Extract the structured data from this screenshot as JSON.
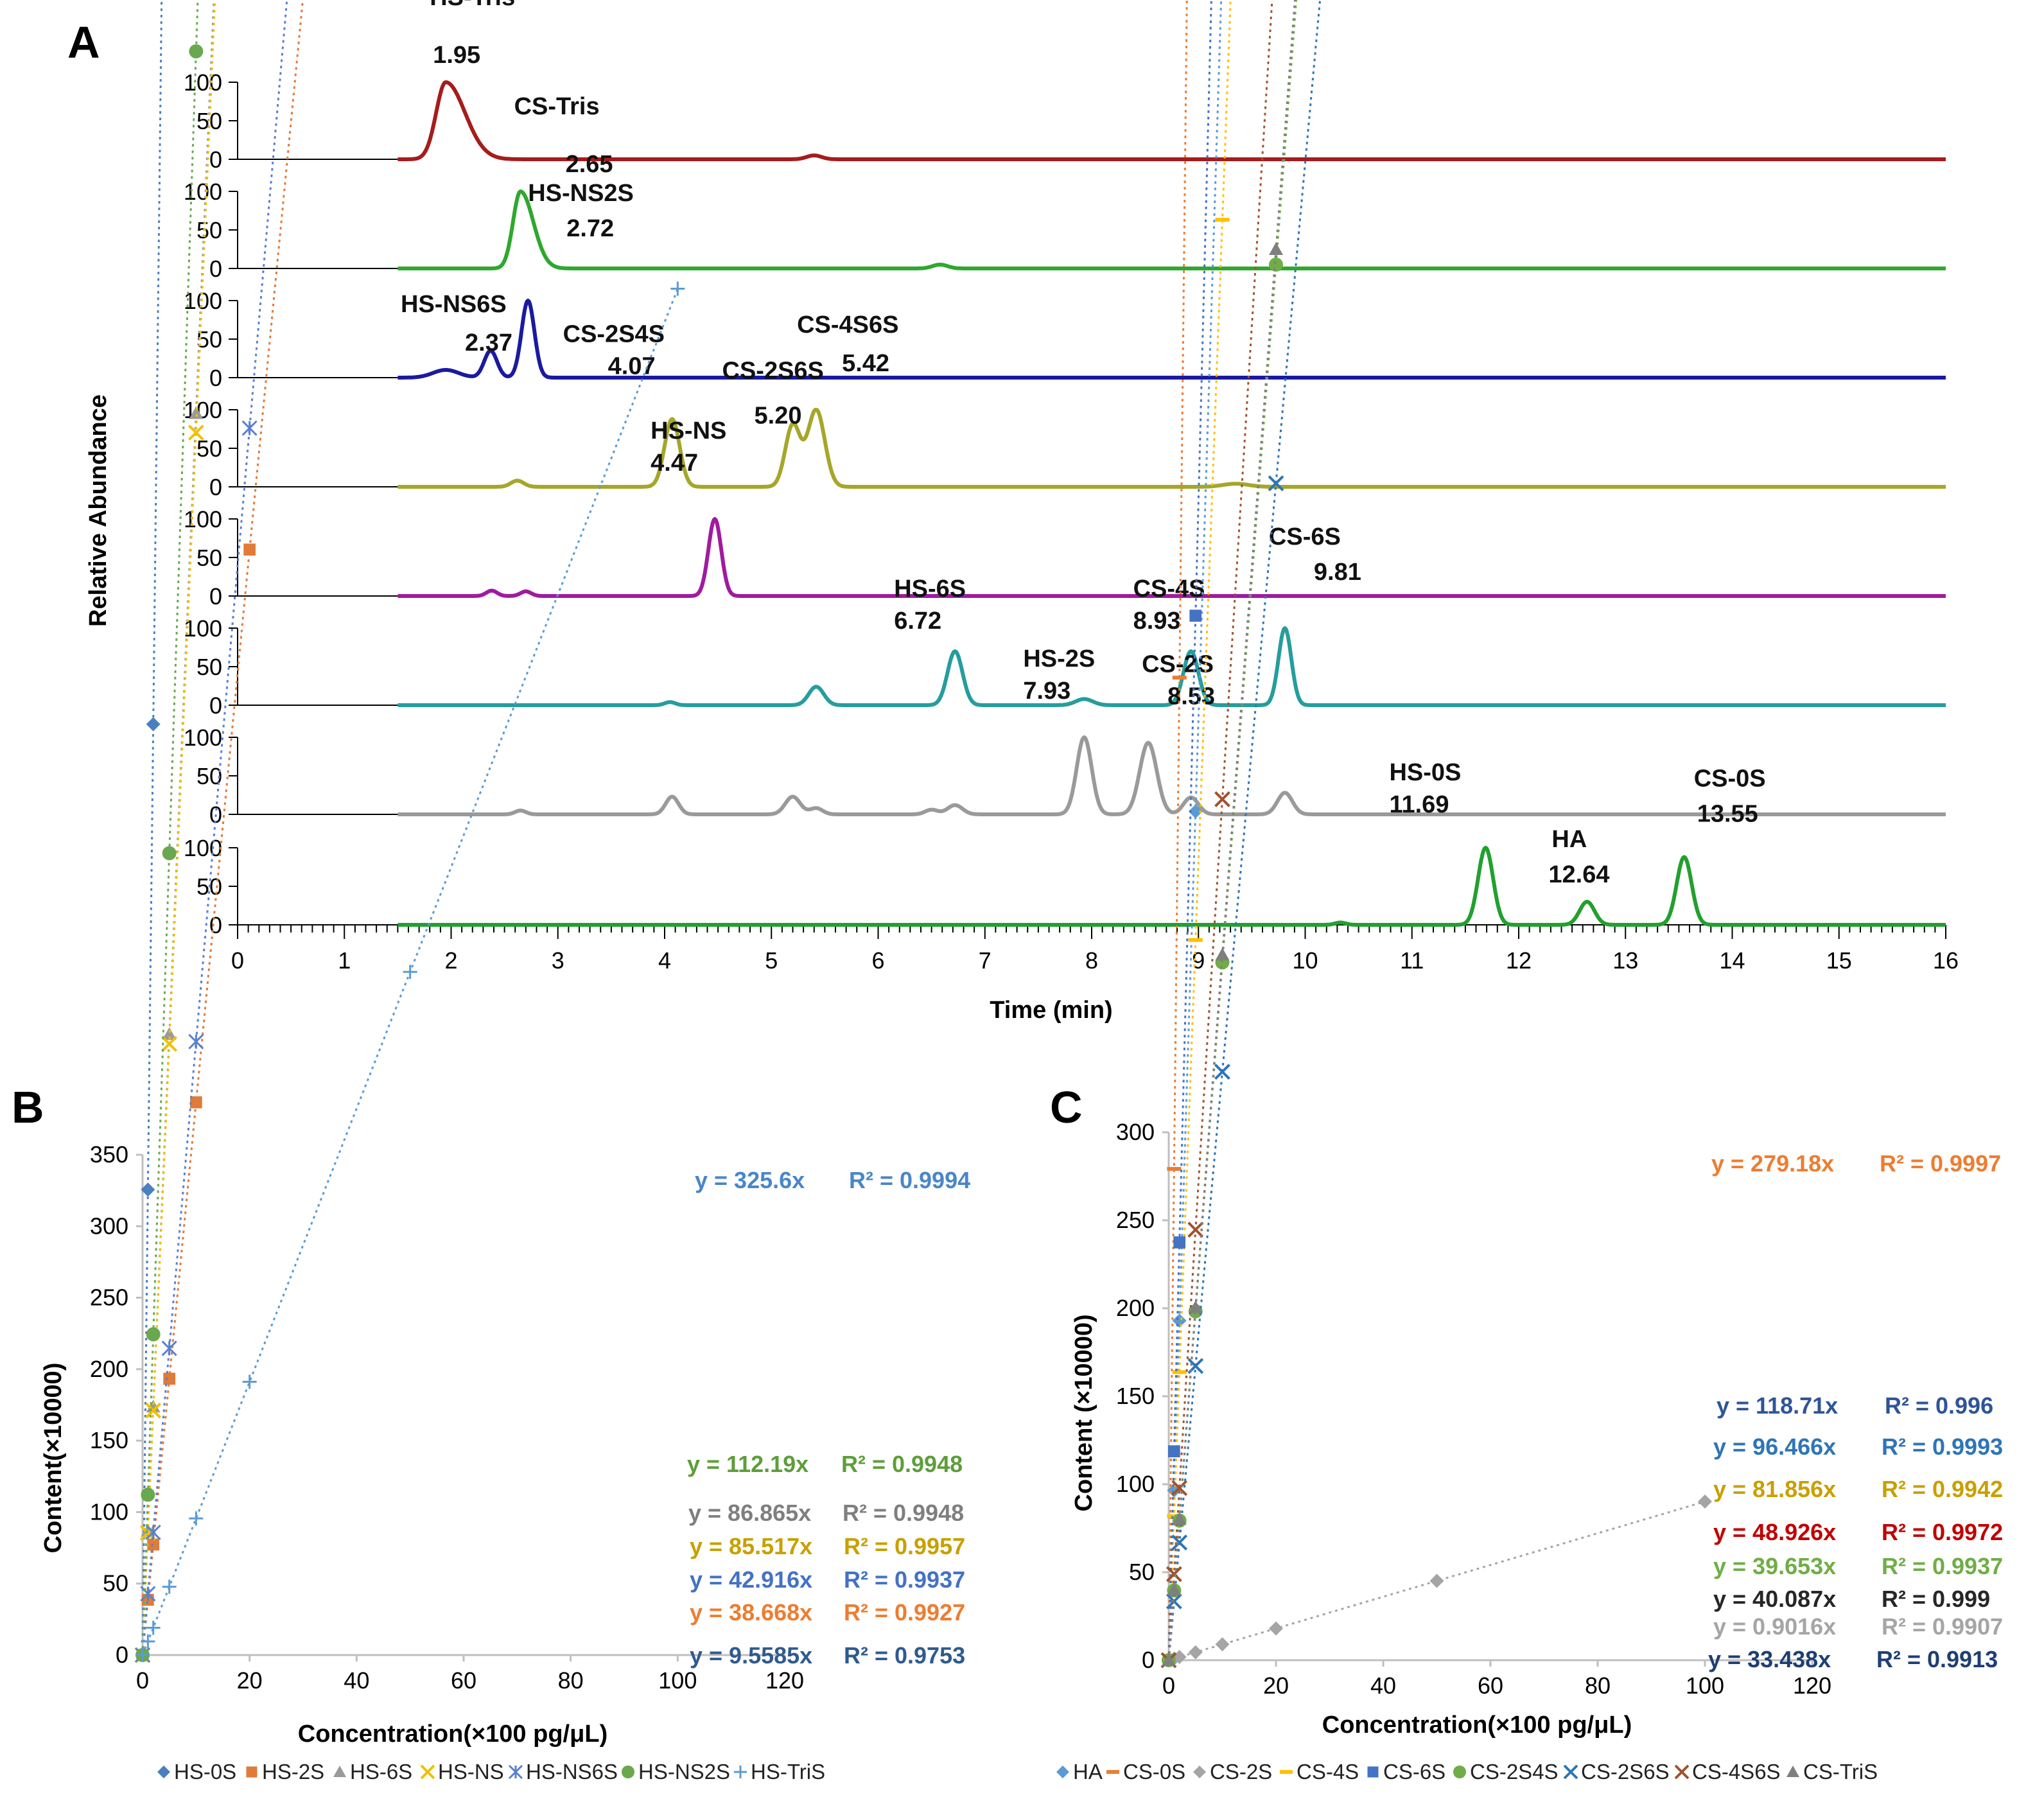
{
  "panels": {
    "a": "A",
    "b": "B",
    "c": "C"
  },
  "chart_data": [
    {
      "type": "line",
      "panel": "A",
      "title": "",
      "xlabel": "Time (min)",
      "ylabel": "Relative Abundance",
      "xlim": [
        0,
        16
      ],
      "x_ticks": [
        "0",
        "1",
        "2",
        "3",
        "4",
        "5",
        "6",
        "7",
        "8",
        "9",
        "10",
        "11",
        "12",
        "13",
        "14",
        "15",
        "16"
      ],
      "y_ticks": [
        "100",
        "50",
        "0"
      ],
      "ylim": [
        0,
        100
      ],
      "series": [
        {
          "name": "HS-Tris",
          "color": "#a61c1c",
          "peaks": [
            {
              "rt": 1.95,
              "height": 100,
              "width": 0.09,
              "tail": 0.18
            },
            {
              "rt": 5.4,
              "height": 5,
              "width": 0.07
            }
          ],
          "labels": [
            {
              "name": "HS-Tris",
              "rt": "1.95"
            }
          ]
        },
        {
          "name": "CS-Tris",
          "color": "#2ea82e",
          "peaks": [
            {
              "rt": 2.65,
              "height": 100,
              "width": 0.07,
              "tail": 0.12
            },
            {
              "rt": 6.58,
              "height": 5,
              "width": 0.07
            }
          ],
          "labels": [
            {
              "name": "CS-Tris",
              "rt": "2.65"
            }
          ]
        },
        {
          "name": "HS-NS2S/HS-NS6S",
          "color": "#1a1aa0",
          "peaks": [
            {
              "rt": 1.95,
              "height": 10,
              "width": 0.12
            },
            {
              "rt": 2.37,
              "height": 35,
              "width": 0.06
            },
            {
              "rt": 2.72,
              "height": 100,
              "width": 0.06
            }
          ],
          "labels": [
            {
              "name": "HS-NS2S",
              "rt": "2.72"
            },
            {
              "name": "HS-NS6S",
              "rt": "2.37"
            }
          ]
        },
        {
          "name": "CS-2S4S/CS-2S6S/CS-4S6S",
          "color": "#a6a62a",
          "peaks": [
            {
              "rt": 2.62,
              "height": 8,
              "width": 0.06
            },
            {
              "rt": 4.07,
              "height": 88,
              "width": 0.07
            },
            {
              "rt": 5.2,
              "height": 80,
              "width": 0.07
            },
            {
              "rt": 5.42,
              "height": 100,
              "width": 0.08
            },
            {
              "rt": 9.35,
              "height": 4,
              "width": 0.12
            }
          ],
          "labels": [
            {
              "name": "CS-2S4S",
              "rt": "4.07"
            },
            {
              "name": "CS-2S6S",
              "rt": "5.20"
            },
            {
              "name": "CS-4S6S",
              "rt": "5.42"
            }
          ]
        },
        {
          "name": "HS-NS",
          "color": "#a01aa0",
          "peaks": [
            {
              "rt": 2.38,
              "height": 7,
              "width": 0.05
            },
            {
              "rt": 2.7,
              "height": 6,
              "width": 0.05
            },
            {
              "rt": 4.47,
              "height": 100,
              "width": 0.06
            }
          ],
          "labels": [
            {
              "name": "HS-NS",
              "rt": "4.47"
            }
          ]
        },
        {
          "name": "HS-6S/CS-4S/CS-6S",
          "color": "#259d9d",
          "peaks": [
            {
              "rt": 4.05,
              "height": 4,
              "width": 0.05
            },
            {
              "rt": 5.42,
              "height": 24,
              "width": 0.07
            },
            {
              "rt": 6.72,
              "height": 70,
              "width": 0.07
            },
            {
              "rt": 7.93,
              "height": 8,
              "width": 0.08
            },
            {
              "rt": 8.93,
              "height": 70,
              "width": 0.07
            },
            {
              "rt": 9.81,
              "height": 100,
              "width": 0.06
            }
          ],
          "labels": [
            {
              "name": "HS-6S",
              "rt": "6.72"
            },
            {
              "name": "CS-4S",
              "rt": "8.93"
            },
            {
              "name": "CS-6S",
              "rt": "9.81"
            }
          ]
        },
        {
          "name": "HS-2S/CS-2S",
          "color": "#9a9a9a",
          "peaks": [
            {
              "rt": 2.65,
              "height": 5,
              "width": 0.05
            },
            {
              "rt": 4.07,
              "height": 23,
              "width": 0.06
            },
            {
              "rt": 5.2,
              "height": 23,
              "width": 0.07
            },
            {
              "rt": 5.42,
              "height": 8,
              "width": 0.06
            },
            {
              "rt": 6.5,
              "height": 6,
              "width": 0.06
            },
            {
              "rt": 6.72,
              "height": 12,
              "width": 0.07
            },
            {
              "rt": 7.93,
              "height": 100,
              "width": 0.07
            },
            {
              "rt": 8.53,
              "height": 93,
              "width": 0.08
            },
            {
              "rt": 8.93,
              "height": 22,
              "width": 0.07
            },
            {
              "rt": 9.81,
              "height": 28,
              "width": 0.07
            }
          ],
          "labels": [
            {
              "name": "HS-2S",
              "rt": "7.93"
            },
            {
              "name": "CS-2S",
              "rt": "8.53"
            }
          ]
        },
        {
          "name": "HS-0S/HA/CS-0S",
          "color": "#22a02e",
          "peaks": [
            {
              "rt": 10.33,
              "height": 3,
              "width": 0.05
            },
            {
              "rt": 11.69,
              "height": 100,
              "width": 0.07
            },
            {
              "rt": 12.64,
              "height": 30,
              "width": 0.07
            },
            {
              "rt": 13.55,
              "height": 88,
              "width": 0.07
            }
          ],
          "labels": [
            {
              "name": "HS-0S",
              "rt": "11.69"
            },
            {
              "name": "HA",
              "rt": "12.64"
            },
            {
              "name": "CS-0S",
              "rt": "13.55"
            }
          ]
        }
      ]
    },
    {
      "type": "scatter",
      "panel": "B",
      "xlabel": "Concentration(×100 pg/μL)",
      "ylabel": "Content(×10000)",
      "xlim": [
        0,
        120
      ],
      "ylim": [
        0,
        350
      ],
      "x_ticks": [
        "0",
        "20",
        "40",
        "60",
        "80",
        "100",
        "120"
      ],
      "y_ticks": [
        "0",
        "50",
        "100",
        "150",
        "200",
        "250",
        "300",
        "350"
      ],
      "x": [
        0,
        1,
        2,
        5,
        10,
        20,
        50,
        100
      ],
      "series": [
        {
          "name": "HS-0S",
          "marker": "diamond",
          "color": "#4a7fc0",
          "eq_color": "#4a86c8",
          "slope": 325.6,
          "equation": "y = 325.6x",
          "r2": "R² = 0.9994"
        },
        {
          "name": "HS-2S",
          "marker": "square",
          "color": "#e07b39",
          "eq_color": "#ed7d31",
          "slope": 38.668,
          "equation": "y = 38.668x",
          "r2": "R² = 0.9927"
        },
        {
          "name": "HS-6S",
          "marker": "triangle",
          "color": "#9a9a9a",
          "eq_color": "#7f7f7f",
          "slope": 86.865,
          "equation": "y = 86.865x",
          "r2": "R² = 0.9948"
        },
        {
          "name": "HS-NS",
          "marker": "x",
          "color": "#f0c000",
          "eq_color": "#c8a000",
          "slope": 85.517,
          "equation": "y = 85.517x",
          "r2": "R² = 0.9957"
        },
        {
          "name": "HS-NS6S",
          "marker": "star",
          "color": "#5b7fcf",
          "eq_color": "#4472c4",
          "slope": 42.916,
          "equation": "y = 42.916x",
          "r2": "R² = 0.9937"
        },
        {
          "name": "HS-NS2S",
          "marker": "circle",
          "color": "#6aa84f",
          "eq_color": "#5e9e3a",
          "slope": 112.19,
          "equation": "y = 112.19x",
          "r2": "R² = 0.9948"
        },
        {
          "name": "HS-TriS",
          "marker": "plus",
          "color": "#5b9bd5",
          "eq_color": "#2f5b8e",
          "slope": 9.5585,
          "equation": "y = 9.5585x",
          "r2": "R² = 0.9753"
        }
      ]
    },
    {
      "type": "scatter",
      "panel": "C",
      "xlabel": "Concentration(×100 pg/μL)",
      "ylabel": "Content (×10000)",
      "xlim": [
        0,
        120
      ],
      "ylim": [
        0,
        300
      ],
      "x_ticks": [
        "0",
        "20",
        "40",
        "60",
        "80",
        "100",
        "120"
      ],
      "y_ticks": [
        "0",
        "50",
        "100",
        "150",
        "200",
        "250",
        "300"
      ],
      "x": [
        0,
        1,
        2,
        5,
        10,
        20,
        50,
        100
      ],
      "series": [
        {
          "name": "HA",
          "marker": "diamond",
          "color": "#5b9bd5",
          "eq_color": "#2e75b6",
          "slope": 96.466,
          "equation": "y = 96.466x",
          "r2": "R² = 0.9993"
        },
        {
          "name": "CS-0S",
          "marker": "dash",
          "color": "#ed7d31",
          "eq_color": "#ed7d31",
          "slope": 279.18,
          "equation": "y = 279.18x",
          "r2": "R² = 0.9997"
        },
        {
          "name": "CS-2S",
          "marker": "diamond",
          "color": "#a5a5a5",
          "eq_color": "#a5a5a5",
          "slope": 0.9016,
          "equation": "y = 0.9016x",
          "r2": "R² = 0.9907"
        },
        {
          "name": "CS-4S",
          "marker": "dash",
          "color": "#ffc000",
          "eq_color": "#c8a000",
          "slope": 81.856,
          "equation": "y = 81.856x",
          "r2": "R² = 0.9942"
        },
        {
          "name": "CS-6S",
          "marker": "square",
          "color": "#4472c4",
          "eq_color": "#2f5597",
          "slope": 118.71,
          "equation": "y = 118.71x",
          "r2": "R² = 0.996"
        },
        {
          "name": "CS-2S4S",
          "marker": "circle",
          "color": "#70ad47",
          "eq_color": "#70ad47",
          "slope": 39.653,
          "equation": "y = 39.653x",
          "r2": "R² = 0.9937"
        },
        {
          "name": "CS-2S6S",
          "marker": "x",
          "color": "#2e75b6",
          "eq_color": "#1f3f73",
          "slope": 33.438,
          "equation": "y = 33.438x",
          "r2": "R² = 0.9913"
        },
        {
          "name": "CS-4S6S",
          "marker": "x",
          "color": "#a0522d",
          "eq_color": "#c00000",
          "slope": 48.926,
          "equation": "y = 48.926x",
          "r2": "R² = 0.9972"
        },
        {
          "name": "CS-TriS",
          "marker": "triangle",
          "color": "#7f7f7f",
          "eq_color": "#262626",
          "slope": 40.087,
          "equation": "y = 40.087x",
          "r2": "R² = 0.999"
        }
      ]
    }
  ]
}
